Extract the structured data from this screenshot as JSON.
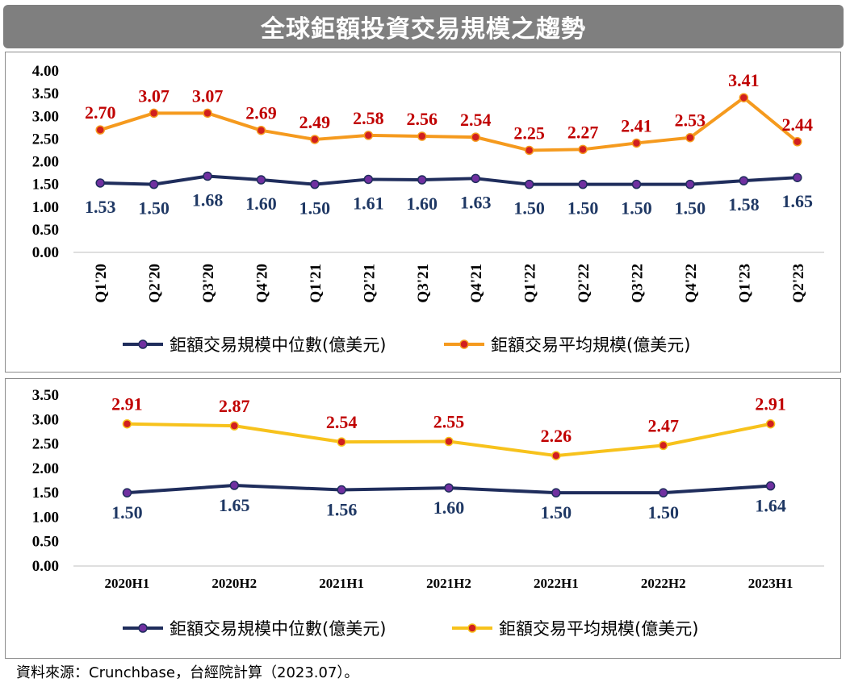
{
  "title": "全球鉅額投資交易規模之趨勢",
  "source": "資料來源：Crunchbase，台經院計算（2023.07）。",
  "colors": {
    "median": "#1f2d5c",
    "mean_top": "#f59a1e",
    "mean_bottom": "#f7c21c",
    "label_red": "#c00000",
    "label_navy": "#1f3864",
    "marker_fill": "#7030a0",
    "marker_red": "#d11f1f"
  },
  "chart_data": [
    {
      "type": "line",
      "categories": [
        "Q1'20",
        "Q2'20",
        "Q3'20",
        "Q4'20",
        "Q1'21",
        "Q2'21",
        "Q3'21",
        "Q4'21",
        "Q1'22",
        "Q2'22",
        "Q3'22",
        "Q4'22",
        "Q1'23",
        "Q2'23"
      ],
      "ylim": [
        0,
        4
      ],
      "yticks": [
        "0.00",
        "0.50",
        "1.00",
        "1.50",
        "2.00",
        "2.50",
        "3.00",
        "3.50",
        "4.00"
      ],
      "series": [
        {
          "name": "鉅額交易規模中位數(億美元)",
          "values": [
            1.53,
            1.5,
            1.68,
            1.6,
            1.5,
            1.61,
            1.6,
            1.63,
            1.5,
            1.5,
            1.5,
            1.5,
            1.58,
            1.65
          ],
          "labels": [
            "1.53",
            "1.50",
            "1.68",
            "1.60",
            "1.50",
            "1.61",
            "1.60",
            "1.63",
            "1.50",
            "1.50",
            "1.50",
            "1.50",
            "1.58",
            "1.65"
          ]
        },
        {
          "name": "鉅額交易平均規模(億美元)",
          "values": [
            2.7,
            3.07,
            3.07,
            2.69,
            2.49,
            2.58,
            2.56,
            2.54,
            2.25,
            2.27,
            2.41,
            2.53,
            3.41,
            2.44
          ],
          "labels": [
            "2.70",
            "3.07",
            "3.07",
            "2.69",
            "2.49",
            "2.58",
            "2.56",
            "2.54",
            "2.25",
            "2.27",
            "2.41",
            "2.53",
            "3.41",
            "2.44"
          ]
        }
      ],
      "legend": "bottom"
    },
    {
      "type": "line",
      "categories": [
        "2020H1",
        "2020H2",
        "2021H1",
        "2021H2",
        "2022H1",
        "2022H2",
        "2023H1"
      ],
      "ylim": [
        0,
        3.5
      ],
      "yticks": [
        "0.00",
        "0.50",
        "1.00",
        "1.50",
        "2.00",
        "2.50",
        "3.00",
        "3.50"
      ],
      "series": [
        {
          "name": "鉅額交易規模中位數(億美元)",
          "values": [
            1.5,
            1.65,
            1.56,
            1.6,
            1.5,
            1.5,
            1.64
          ],
          "labels": [
            "1.50",
            "1.65",
            "1.56",
            "1.60",
            "1.50",
            "1.50",
            "1.64"
          ]
        },
        {
          "name": "鉅額交易平均規模(億美元)",
          "values": [
            2.91,
            2.87,
            2.54,
            2.55,
            2.26,
            2.47,
            2.91
          ],
          "labels": [
            "2.91",
            "2.87",
            "2.54",
            "2.55",
            "2.26",
            "2.47",
            "2.91"
          ]
        }
      ],
      "legend": "bottom"
    }
  ]
}
